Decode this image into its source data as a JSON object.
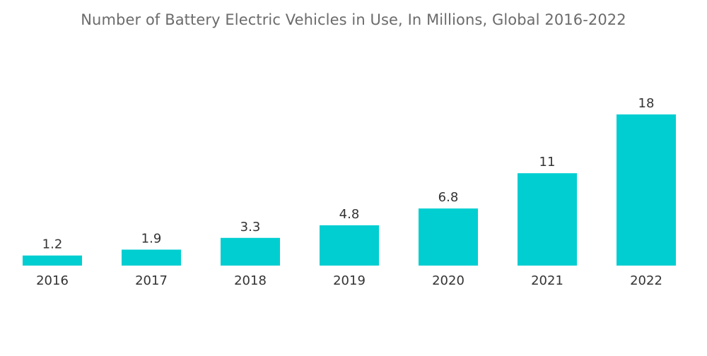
{
  "chart_data": {
    "type": "bar",
    "title": "Number of Battery Electric Vehicles in Use, In Millions, Global 2016-2022",
    "xlabel": "",
    "ylabel": "",
    "categories": [
      "2016",
      "2017",
      "2018",
      "2019",
      "2020",
      "2021",
      "2022"
    ],
    "values": [
      1.2,
      1.9,
      3.3,
      4.8,
      6.8,
      11,
      18
    ],
    "value_labels": [
      "1.2",
      "1.9",
      "3.3",
      "4.8",
      "6.8",
      "11",
      "18"
    ],
    "ylim": [
      0,
      18
    ],
    "grid": false,
    "legend": "none",
    "bar_color": "#00ced1"
  }
}
